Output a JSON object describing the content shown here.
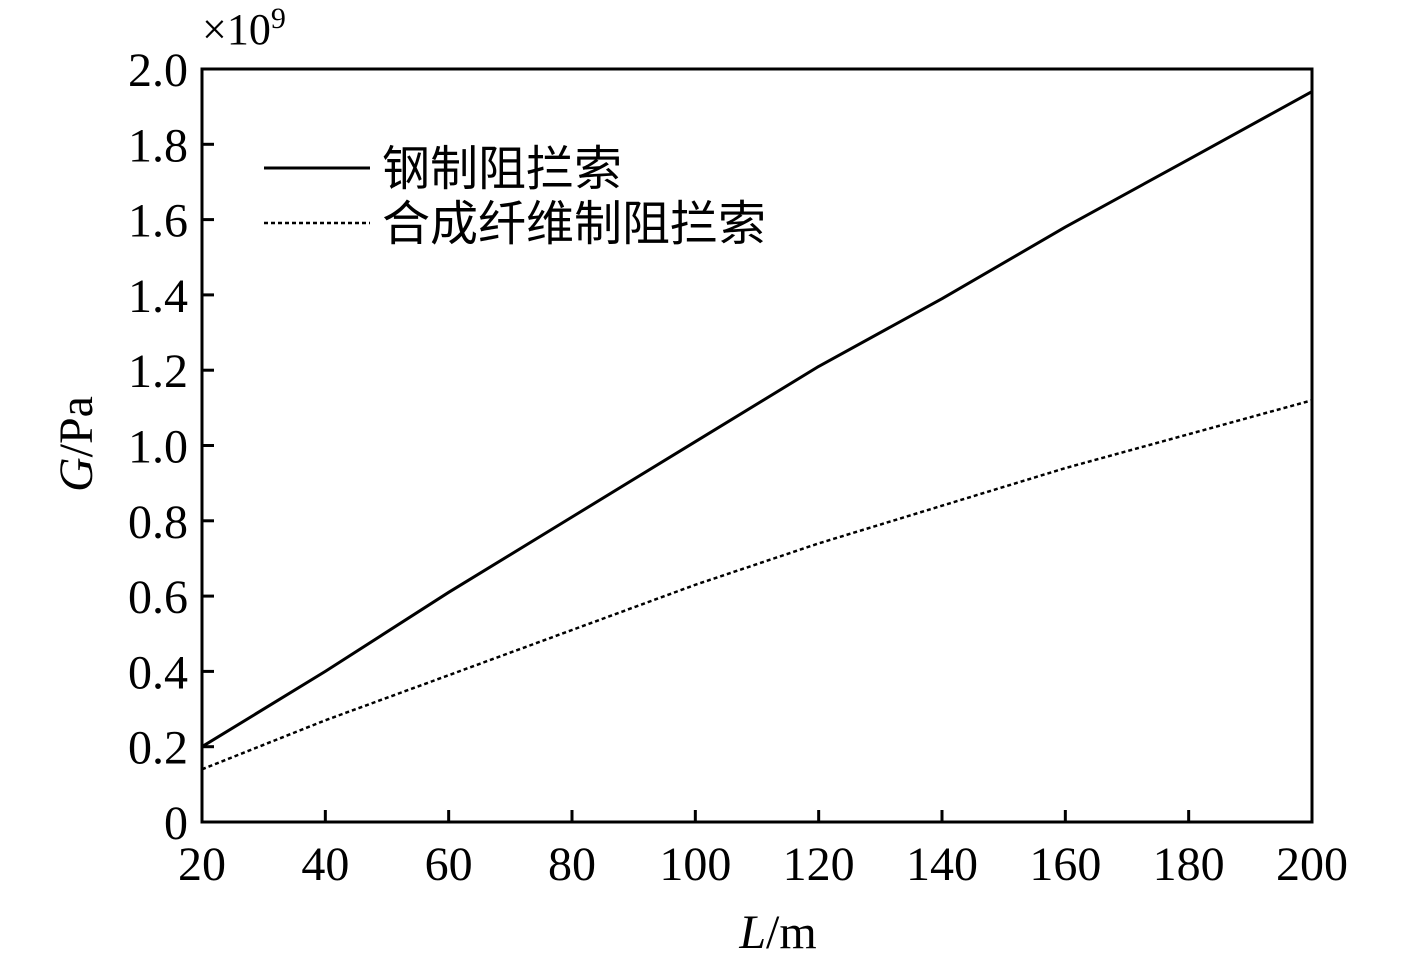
{
  "chart_data": {
    "type": "line",
    "xlabel_var": "L",
    "xlabel_unit": "/m",
    "ylabel_var": "G",
    "ylabel_unit": "/Pa",
    "y_multiplier": "×10",
    "y_multiplier_exp": "9",
    "xlim": [
      20,
      200
    ],
    "ylim": [
      0,
      2.0
    ],
    "x_ticks": [
      "20",
      "40",
      "60",
      "80",
      "100",
      "120",
      "140",
      "160",
      "180",
      "200"
    ],
    "x_tick_values": [
      20,
      40,
      60,
      80,
      100,
      120,
      140,
      160,
      180,
      200
    ],
    "y_ticks": [
      "0",
      "0.2",
      "0.4",
      "0.6",
      "0.8",
      "1.0",
      "1.2",
      "1.4",
      "1.6",
      "1.8",
      "2.0"
    ],
    "y_tick_values": [
      0,
      0.2,
      0.4,
      0.6,
      0.8,
      1.0,
      1.2,
      1.4,
      1.6,
      1.8,
      2.0
    ],
    "grid": false,
    "legend_position": "top-left",
    "series": [
      {
        "name": "钢制阻拦索",
        "style": "solid",
        "color": "#000000",
        "x": [
          20,
          40,
          60,
          80,
          100,
          120,
          140,
          160,
          180,
          200
        ],
        "values": [
          0.2,
          0.4,
          0.61,
          0.81,
          1.01,
          1.21,
          1.39,
          1.58,
          1.76,
          1.94
        ]
      },
      {
        "name": "合成纤维制阻拦索",
        "style": "dotted",
        "color": "#000000",
        "x": [
          20,
          40,
          60,
          80,
          100,
          120,
          140,
          160,
          180,
          200
        ],
        "values": [
          0.14,
          0.27,
          0.39,
          0.51,
          0.63,
          0.74,
          0.84,
          0.94,
          1.03,
          1.12
        ]
      }
    ]
  }
}
